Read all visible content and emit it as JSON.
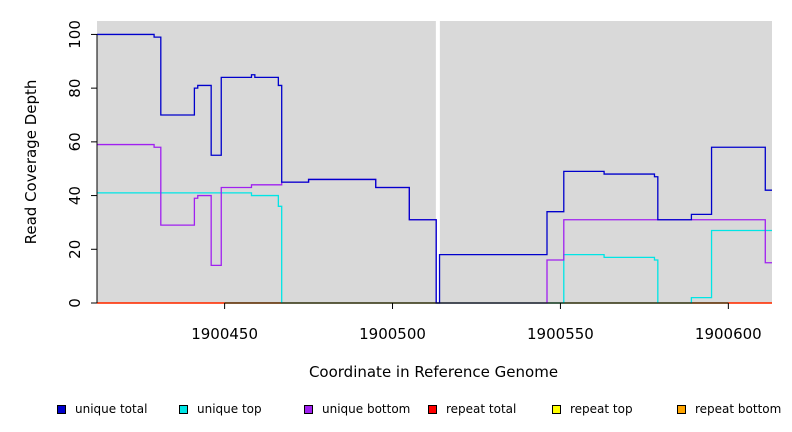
{
  "chart_data": {
    "type": "line",
    "title": "",
    "xlabel": "Coordinate in Reference Genome",
    "ylabel": "Read Coverage Depth",
    "xlim": [
      1900412,
      1900613
    ],
    "ylim": [
      0,
      105
    ],
    "x_ticks": [
      1900450,
      1900500,
      1900550,
      1900600
    ],
    "x_tick_labels": [
      "1900450",
      "1900500",
      "1900550",
      "1900600"
    ],
    "y_ticks": [
      0,
      20,
      40,
      60,
      80,
      100
    ],
    "y_tick_labels": [
      "0",
      "20",
      "40",
      "60",
      "80",
      "100"
    ],
    "background": "#d9d9d9",
    "grid": false,
    "gap_marker_x": 1900513.5,
    "gap_marker_color": "#ffffff",
    "legend_position": "bottom",
    "series": [
      {
        "name": "unique total",
        "color": "#0000cc",
        "step": [
          [
            1900412,
            100
          ],
          [
            1900429,
            99
          ],
          [
            1900431,
            70
          ],
          [
            1900441,
            80
          ],
          [
            1900442,
            81
          ],
          [
            1900446,
            55
          ],
          [
            1900449,
            84
          ],
          [
            1900458,
            85
          ],
          [
            1900459,
            84
          ],
          [
            1900466,
            81
          ],
          [
            1900467,
            45
          ],
          [
            1900475,
            46
          ],
          [
            1900495,
            43
          ],
          [
            1900505,
            31
          ],
          [
            1900513,
            0
          ],
          [
            1900514,
            18
          ],
          [
            1900546,
            34
          ],
          [
            1900551,
            49
          ],
          [
            1900563,
            48
          ],
          [
            1900578,
            47
          ],
          [
            1900579,
            31
          ],
          [
            1900589,
            33
          ],
          [
            1900595,
            58
          ],
          [
            1900611,
            42
          ],
          [
            1900613,
            42
          ]
        ]
      },
      {
        "name": "unique top",
        "color": "#00e5e5",
        "step": [
          [
            1900412,
            41
          ],
          [
            1900458,
            40
          ],
          [
            1900466,
            36
          ],
          [
            1900467,
            0
          ],
          [
            1900589,
            2
          ],
          [
            1900595,
            27
          ],
          [
            1900613,
            27
          ]
        ],
        "step_alt": [
          [
            1900513,
            0
          ],
          [
            1900514,
            0
          ],
          [
            1900551,
            18
          ],
          [
            1900563,
            17
          ],
          [
            1900578,
            16
          ],
          [
            1900579,
            0
          ]
        ]
      },
      {
        "name": "unique bottom",
        "color": "#a020f0",
        "step": [
          [
            1900412,
            59
          ],
          [
            1900429,
            58
          ],
          [
            1900431,
            29
          ],
          [
            1900441,
            39
          ],
          [
            1900442,
            40
          ],
          [
            1900446,
            14
          ],
          [
            1900449,
            43
          ],
          [
            1900458,
            44
          ],
          [
            1900467,
            45
          ],
          [
            1900475,
            46
          ],
          [
            1900495,
            43
          ],
          [
            1900505,
            31
          ],
          [
            1900513,
            0
          ],
          [
            1900546,
            16
          ],
          [
            1900551,
            31
          ],
          [
            1900611,
            15
          ],
          [
            1900613,
            15
          ]
        ]
      },
      {
        "name": "repeat total",
        "color": "#ff0000",
        "step": [
          [
            1900412,
            0
          ],
          [
            1900613,
            0
          ]
        ]
      },
      {
        "name": "repeat top",
        "color": "#ffff00",
        "step": [
          [
            1900412,
            0
          ],
          [
            1900613,
            0
          ]
        ]
      },
      {
        "name": "repeat bottom",
        "color": "#ffa500",
        "step": [
          [
            1900412,
            0
          ],
          [
            1900613,
            0
          ]
        ]
      }
    ]
  },
  "legend": {
    "items": [
      {
        "label": "unique total",
        "color": "#0000cc"
      },
      {
        "label": "unique top",
        "color": "#00e5e5"
      },
      {
        "label": "unique bottom",
        "color": "#a020f0"
      },
      {
        "label": "repeat total",
        "color": "#ff0000"
      },
      {
        "label": "repeat top",
        "color": "#ffff00"
      },
      {
        "label": "repeat bottom",
        "color": "#ffa500"
      }
    ]
  }
}
